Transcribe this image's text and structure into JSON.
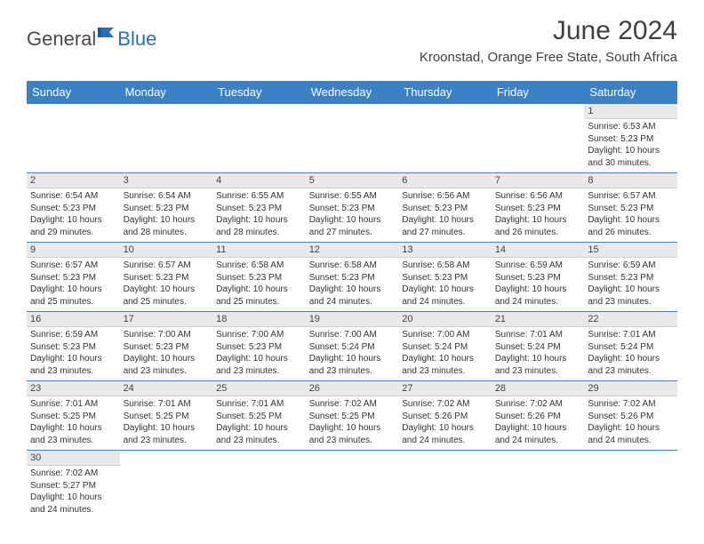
{
  "logo": {
    "general": "General",
    "blue": "Blue"
  },
  "title": "June 2024",
  "location": "Kroonstad, Orange Free State, South Africa",
  "colors": {
    "header_bg": "#3a82c4",
    "header_text": "#ffffff",
    "daynum_bg": "#e9e9e9",
    "border": "#3a82c4",
    "body_text": "#333333",
    "page_bg": "#ffffff"
  },
  "fonts": {
    "title_size_pt": 22,
    "location_size_pt": 11,
    "weekday_size_pt": 10,
    "cell_size_pt": 7.5
  },
  "weekdays": [
    "Sunday",
    "Monday",
    "Tuesday",
    "Wednesday",
    "Thursday",
    "Friday",
    "Saturday"
  ],
  "weeks": [
    [
      null,
      null,
      null,
      null,
      null,
      null,
      {
        "n": "1",
        "sunrise": "6:53 AM",
        "sunset": "5:23 PM",
        "daylight": "10 hours and 30 minutes."
      }
    ],
    [
      {
        "n": "2",
        "sunrise": "6:54 AM",
        "sunset": "5:23 PM",
        "daylight": "10 hours and 29 minutes."
      },
      {
        "n": "3",
        "sunrise": "6:54 AM",
        "sunset": "5:23 PM",
        "daylight": "10 hours and 28 minutes."
      },
      {
        "n": "4",
        "sunrise": "6:55 AM",
        "sunset": "5:23 PM",
        "daylight": "10 hours and 28 minutes."
      },
      {
        "n": "5",
        "sunrise": "6:55 AM",
        "sunset": "5:23 PM",
        "daylight": "10 hours and 27 minutes."
      },
      {
        "n": "6",
        "sunrise": "6:56 AM",
        "sunset": "5:23 PM",
        "daylight": "10 hours and 27 minutes."
      },
      {
        "n": "7",
        "sunrise": "6:56 AM",
        "sunset": "5:23 PM",
        "daylight": "10 hours and 26 minutes."
      },
      {
        "n": "8",
        "sunrise": "6:57 AM",
        "sunset": "5:23 PM",
        "daylight": "10 hours and 26 minutes."
      }
    ],
    [
      {
        "n": "9",
        "sunrise": "6:57 AM",
        "sunset": "5:23 PM",
        "daylight": "10 hours and 25 minutes."
      },
      {
        "n": "10",
        "sunrise": "6:57 AM",
        "sunset": "5:23 PM",
        "daylight": "10 hours and 25 minutes."
      },
      {
        "n": "11",
        "sunrise": "6:58 AM",
        "sunset": "5:23 PM",
        "daylight": "10 hours and 25 minutes."
      },
      {
        "n": "12",
        "sunrise": "6:58 AM",
        "sunset": "5:23 PM",
        "daylight": "10 hours and 24 minutes."
      },
      {
        "n": "13",
        "sunrise": "6:58 AM",
        "sunset": "5:23 PM",
        "daylight": "10 hours and 24 minutes."
      },
      {
        "n": "14",
        "sunrise": "6:59 AM",
        "sunset": "5:23 PM",
        "daylight": "10 hours and 24 minutes."
      },
      {
        "n": "15",
        "sunrise": "6:59 AM",
        "sunset": "5:23 PM",
        "daylight": "10 hours and 23 minutes."
      }
    ],
    [
      {
        "n": "16",
        "sunrise": "6:59 AM",
        "sunset": "5:23 PM",
        "daylight": "10 hours and 23 minutes."
      },
      {
        "n": "17",
        "sunrise": "7:00 AM",
        "sunset": "5:23 PM",
        "daylight": "10 hours and 23 minutes."
      },
      {
        "n": "18",
        "sunrise": "7:00 AM",
        "sunset": "5:23 PM",
        "daylight": "10 hours and 23 minutes."
      },
      {
        "n": "19",
        "sunrise": "7:00 AM",
        "sunset": "5:24 PM",
        "daylight": "10 hours and 23 minutes."
      },
      {
        "n": "20",
        "sunrise": "7:00 AM",
        "sunset": "5:24 PM",
        "daylight": "10 hours and 23 minutes."
      },
      {
        "n": "21",
        "sunrise": "7:01 AM",
        "sunset": "5:24 PM",
        "daylight": "10 hours and 23 minutes."
      },
      {
        "n": "22",
        "sunrise": "7:01 AM",
        "sunset": "5:24 PM",
        "daylight": "10 hours and 23 minutes."
      }
    ],
    [
      {
        "n": "23",
        "sunrise": "7:01 AM",
        "sunset": "5:25 PM",
        "daylight": "10 hours and 23 minutes."
      },
      {
        "n": "24",
        "sunrise": "7:01 AM",
        "sunset": "5:25 PM",
        "daylight": "10 hours and 23 minutes."
      },
      {
        "n": "25",
        "sunrise": "7:01 AM",
        "sunset": "5:25 PM",
        "daylight": "10 hours and 23 minutes."
      },
      {
        "n": "26",
        "sunrise": "7:02 AM",
        "sunset": "5:25 PM",
        "daylight": "10 hours and 23 minutes."
      },
      {
        "n": "27",
        "sunrise": "7:02 AM",
        "sunset": "5:26 PM",
        "daylight": "10 hours and 24 minutes."
      },
      {
        "n": "28",
        "sunrise": "7:02 AM",
        "sunset": "5:26 PM",
        "daylight": "10 hours and 24 minutes."
      },
      {
        "n": "29",
        "sunrise": "7:02 AM",
        "sunset": "5:26 PM",
        "daylight": "10 hours and 24 minutes."
      }
    ],
    [
      {
        "n": "30",
        "sunrise": "7:02 AM",
        "sunset": "5:27 PM",
        "daylight": "10 hours and 24 minutes."
      },
      null,
      null,
      null,
      null,
      null,
      null
    ]
  ],
  "labels": {
    "sunrise": "Sunrise:",
    "sunset": "Sunset:",
    "daylight": "Daylight:"
  }
}
